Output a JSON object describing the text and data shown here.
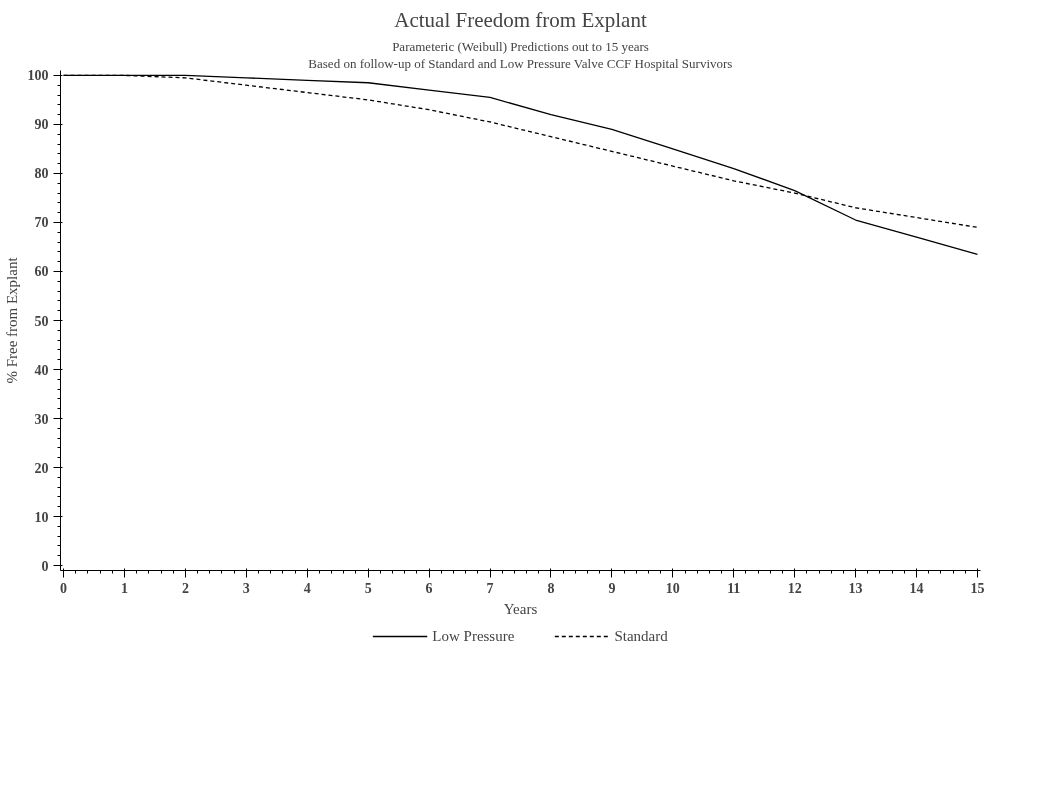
{
  "chart_data": {
    "type": "line",
    "title": "Actual Freedom from Explant",
    "subtitle": "Parameteric (Weibull) Predictions out to 15 years",
    "annotations": [
      "Based on follow-up of Standard and Low Pressure Valve CCF Hospital Survivors"
    ],
    "xlabel": "Years",
    "ylabel": "% Free from Explant",
    "x": [
      0,
      1,
      2,
      3,
      4,
      5,
      6,
      7,
      8,
      9,
      10,
      11,
      12,
      13,
      14,
      15
    ],
    "series": [
      {
        "name": "Low Pressure",
        "color": "#000000",
        "line_style": "solid",
        "values": [
          100,
          100,
          100,
          99.5,
          99,
          98.5,
          97,
          95.5,
          92,
          89,
          85,
          81,
          76.5,
          70.5,
          67,
          63.5
        ]
      },
      {
        "name": "Standard",
        "color": "#000000",
        "line_style": "dashed",
        "values": [
          100,
          100,
          99.5,
          98,
          96.5,
          95,
          93,
          90.5,
          87.5,
          84.5,
          81.5,
          78.5,
          76,
          73,
          71,
          69
        ]
      }
    ],
    "xlim": [
      -0.05,
      15.05
    ],
    "ylim": [
      -1,
      101
    ],
    "xticks": [
      0,
      1,
      2,
      3,
      4,
      5,
      6,
      7,
      8,
      9,
      10,
      11,
      12,
      13,
      14,
      15
    ],
    "yticks": [
      0,
      10,
      20,
      30,
      40,
      50,
      60,
      70,
      80,
      90,
      100
    ],
    "grid": false,
    "legend": "bottom",
    "marker": "none"
  }
}
